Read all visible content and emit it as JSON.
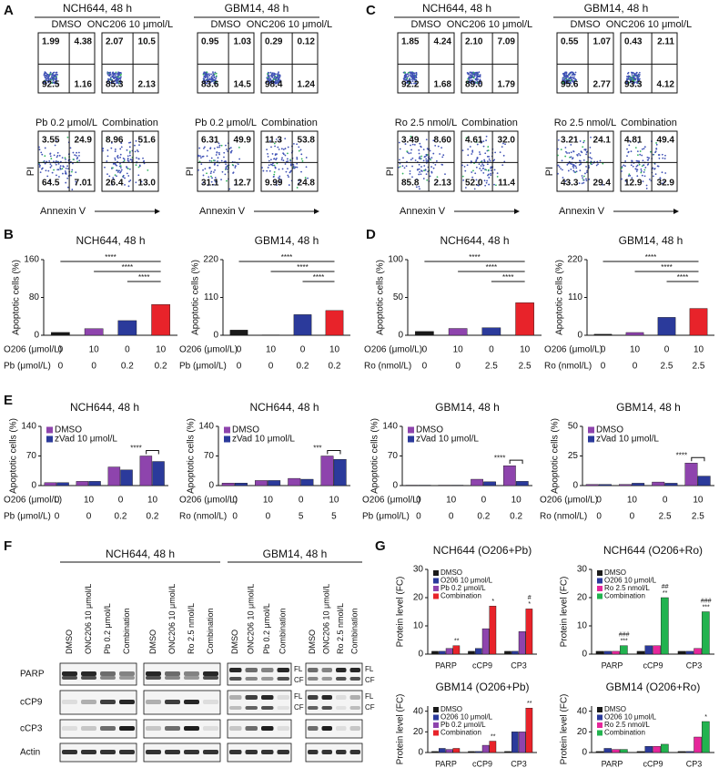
{
  "panel_labels": [
    "A",
    "B",
    "C",
    "D",
    "E",
    "F",
    "G"
  ],
  "flow_panels": [
    {
      "groups": [
        {
          "title": "NCH644, 48 h",
          "ylabel": "PI",
          "xlabel": "Annexin V",
          "plots": [
            {
              "name": "DMSO",
              "quadrants": [
                "1.99",
                "4.38",
                "92.5",
                "1.16"
              ]
            },
            {
              "name": "ONC206 10 μmol/L",
              "quadrants": [
                "2.07",
                "10.5",
                "85.3",
                "2.13"
              ]
            },
            {
              "name": "Pb 0.2 μmol/L",
              "quadrants": [
                "3.55",
                "24.9",
                "64.5",
                "7.01"
              ]
            },
            {
              "name": "Combination",
              "quadrants": [
                "8.96",
                "51.6",
                "26.4",
                "13.0"
              ]
            }
          ]
        },
        {
          "title": "GBM14, 48 h",
          "ylabel": "PI",
          "xlabel": "Annexin V",
          "plots": [
            {
              "name": "DMSO",
              "quadrants": [
                "0.95",
                "1.03",
                "83.6",
                "14.5"
              ]
            },
            {
              "name": "ONC206 10 μmol/L",
              "quadrants": [
                "0.29",
                "0.12",
                "98.4",
                "1.24"
              ]
            },
            {
              "name": "Pb 0.2 μmol/L",
              "quadrants": [
                "6.31",
                "49.9",
                "31.1",
                "12.7"
              ]
            },
            {
              "name": "Combination",
              "quadrants": [
                "11.3",
                "53.8",
                "9.99",
                "24.8"
              ]
            }
          ]
        }
      ]
    },
    {
      "groups": [
        {
          "title": "NCH644, 48 h",
          "ylabel": "PI",
          "xlabel": "Annexin V",
          "plots": [
            {
              "name": "DMSO",
              "quadrants": [
                "1.85",
                "4.24",
                "92.2",
                "1.68"
              ]
            },
            {
              "name": "ONC206 10 μmol/L",
              "quadrants": [
                "2.10",
                "7.09",
                "89.0",
                "1.79"
              ]
            },
            {
              "name": "Ro 2.5 nmol/L",
              "quadrants": [
                "3.49",
                "8.60",
                "85.8",
                "2.13"
              ]
            },
            {
              "name": "Combination",
              "quadrants": [
                "4.61",
                "32.0",
                "52.0",
                "11.4"
              ]
            }
          ]
        },
        {
          "title": "GBM14, 48 h",
          "ylabel": "PI",
          "xlabel": "Annexin V",
          "plots": [
            {
              "name": "DMSO",
              "quadrants": [
                "0.55",
                "1.07",
                "95.6",
                "2.77"
              ]
            },
            {
              "name": "ONC206 10 μmol/L",
              "quadrants": [
                "0.43",
                "2.11",
                "93.3",
                "4.12"
              ]
            },
            {
              "name": "Ro 2.5 nmol/L",
              "quadrants": [
                "3.21",
                "24.1",
                "43.3",
                "29.4"
              ]
            },
            {
              "name": "Combination",
              "quadrants": [
                "4.81",
                "49.4",
                "12.9",
                "32.9"
              ]
            }
          ]
        }
      ]
    }
  ],
  "chart_data": [
    {
      "type": "bar",
      "title": "NCH644, 48 h",
      "ylabel": "Apoptotic cells (%)",
      "ylim": [
        0,
        160
      ],
      "yticks": [
        0,
        80,
        160
      ],
      "series": [
        {
          "values": [
            6,
            14,
            31,
            65
          ],
          "colors": [
            "#1a1a1a",
            "#8e44ad",
            "#2b3a9b",
            "#e8232a"
          ]
        }
      ],
      "condition_rows": [
        {
          "label": "O206 (μmol/L)",
          "values": [
            "0",
            "10",
            "0",
            "10"
          ]
        },
        {
          "label": "Pb (μmol/L)",
          "values": [
            "0",
            "0",
            "0.2",
            "0.2"
          ]
        }
      ],
      "significance": [
        "****",
        "****",
        "****"
      ]
    },
    {
      "type": "bar",
      "title": "GBM14, 48 h",
      "ylabel": "Apoptotic cells (%)",
      "ylim": [
        0,
        220
      ],
      "yticks": [
        0,
        110,
        220
      ],
      "series": [
        {
          "values": [
            15,
            1,
            60,
            72
          ],
          "colors": [
            "#1a1a1a",
            "#8e44ad",
            "#2b3a9b",
            "#e8232a"
          ]
        }
      ],
      "condition_rows": [
        {
          "label": "O206 (μmol/L)",
          "values": [
            "0",
            "10",
            "0",
            "10"
          ]
        },
        {
          "label": "Pb (μmol/L)",
          "values": [
            "0",
            "0",
            "0.2",
            "0.2"
          ]
        }
      ],
      "significance": [
        "****",
        "****",
        "****"
      ]
    },
    {
      "type": "bar",
      "title": "NCH644, 48 h",
      "ylabel": "Apoptotic cells (%)",
      "ylim": [
        0,
        100
      ],
      "yticks": [
        0,
        50,
        100
      ],
      "series": [
        {
          "values": [
            5,
            9,
            10,
            43
          ],
          "colors": [
            "#1a1a1a",
            "#8e44ad",
            "#2b3a9b",
            "#e8232a"
          ]
        }
      ],
      "condition_rows": [
        {
          "label": "O206 (μmol/L)",
          "values": [
            "0",
            "10",
            "0",
            "10"
          ]
        },
        {
          "label": "Ro (nmol/L)",
          "values": [
            "0",
            "0",
            "2.5",
            "2.5"
          ]
        }
      ],
      "significance": [
        "****",
        "****",
        "****"
      ]
    },
    {
      "type": "bar",
      "title": "GBM14, 48 h",
      "ylabel": "Apoptotic cells (%)",
      "ylim": [
        0,
        220
      ],
      "yticks": [
        0,
        110,
        220
      ],
      "series": [
        {
          "values": [
            3,
            8,
            52,
            78
          ],
          "colors": [
            "#1a1a1a",
            "#8e44ad",
            "#2b3a9b",
            "#e8232a"
          ]
        }
      ],
      "condition_rows": [
        {
          "label": "O206 (μmol/L)",
          "values": [
            "0",
            "10",
            "0",
            "10"
          ]
        },
        {
          "label": "Ro (nmol/L)",
          "values": [
            "0",
            "0",
            "2.5",
            "2.5"
          ]
        }
      ],
      "significance": [
        "****",
        "****",
        "****"
      ]
    },
    {
      "type": "bar",
      "title": "NCH644, 48 h",
      "ylabel": "Apoptotic cells (%)",
      "ylim": [
        0,
        140
      ],
      "yticks": [
        0,
        70,
        140
      ],
      "series": [
        {
          "name": "DMSO",
          "color": "#8e44ad",
          "values": [
            7,
            10,
            44,
            70
          ]
        },
        {
          "name": "zVad 10 μmol/L",
          "color": "#2b3a9b",
          "values": [
            7,
            10,
            37,
            57
          ]
        }
      ],
      "condition_rows": [
        {
          "label": "O206 (μmol/L)",
          "values": [
            "0",
            "10",
            "0",
            "10"
          ]
        },
        {
          "label": "Pb (μmol/L)",
          "values": [
            "0",
            "0",
            "0.2",
            "0.2"
          ]
        }
      ],
      "significance": [
        "****"
      ]
    },
    {
      "type": "bar",
      "title": "NCH644, 48 h",
      "ylabel": "Apoptotic cells (%)",
      "ylim": [
        0,
        140
      ],
      "yticks": [
        0,
        70,
        140
      ],
      "series": [
        {
          "name": "DMSO",
          "color": "#8e44ad",
          "values": [
            6,
            12,
            17,
            70
          ]
        },
        {
          "name": "zVad 10 μmol/L",
          "color": "#2b3a9b",
          "values": [
            6,
            12,
            15,
            62
          ]
        }
      ],
      "condition_rows": [
        {
          "label": "O206 (μmol/L)",
          "values": [
            "0",
            "10",
            "0",
            "10"
          ]
        },
        {
          "label": "Ro (nmol/L)",
          "values": [
            "0",
            "0",
            "5",
            "5"
          ]
        }
      ],
      "significance": [
        "***"
      ]
    },
    {
      "type": "bar",
      "title": "GBM14, 48 h",
      "ylabel": "Apoptotic cells (%)",
      "ylim": [
        0,
        140
      ],
      "yticks": [
        0,
        70,
        140
      ],
      "series": [
        {
          "name": "DMSO",
          "color": "#8e44ad",
          "values": [
            1,
            1,
            15,
            47
          ]
        },
        {
          "name": "zVad 10 μmol/L",
          "color": "#2b3a9b",
          "values": [
            1,
            1,
            9,
            10
          ]
        }
      ],
      "condition_rows": [
        {
          "label": "O206 (μmol/L)",
          "values": [
            "0",
            "10",
            "0",
            "10"
          ]
        },
        {
          "label": "Pb (μmol/L)",
          "values": [
            "0",
            "0",
            "0.2",
            "0.2"
          ]
        }
      ],
      "significance": [
        "****"
      ]
    },
    {
      "type": "bar",
      "title": "GBM14, 48 h",
      "ylabel": "Apoptotic cells (%)",
      "ylim": [
        0,
        50
      ],
      "yticks": [
        0,
        25,
        50
      ],
      "series": [
        {
          "name": "DMSO",
          "color": "#8e44ad",
          "values": [
            1,
            1,
            3,
            19
          ]
        },
        {
          "name": "zVad 10 μmol/L",
          "color": "#2b3a9b",
          "values": [
            1,
            2,
            2,
            8
          ]
        }
      ],
      "condition_rows": [
        {
          "label": "O206 (μmol/L)",
          "values": [
            "0",
            "10",
            "0",
            "10"
          ]
        },
        {
          "label": "Ro (nmol/L)",
          "values": [
            "0",
            "0",
            "2.5",
            "2.5"
          ]
        }
      ],
      "significance": [
        "****"
      ]
    },
    {
      "type": "bar",
      "title": "NCH644 (O206+Pb)",
      "ylabel": "Protein level (FC)",
      "ylim": [
        0,
        30
      ],
      "yticks": [
        0,
        10,
        20,
        30
      ],
      "categories": [
        "PARP",
        "cCP9",
        "CP3"
      ],
      "series": [
        {
          "name": "DMSO",
          "color": "#1a1a1a",
          "values": [
            1,
            1,
            1
          ]
        },
        {
          "name": "O206 10 μmol/L",
          "color": "#2b3a9b",
          "values": [
            1,
            2,
            1
          ]
        },
        {
          "name": "Pb 0.2 μmol/L",
          "color": "#8e44ad",
          "values": [
            2,
            9,
            8
          ]
        },
        {
          "name": "Combination",
          "color": "#e8232a",
          "values": [
            3,
            17,
            16
          ],
          "labels": [
            [
              "**"
            ],
            [
              "*"
            ],
            [
              "*",
              "#"
            ]
          ]
        }
      ]
    },
    {
      "type": "bar",
      "title": "NCH644 (O206+Ro)",
      "ylabel": "Protein level (FC)",
      "ylim": [
        0,
        30
      ],
      "yticks": [
        0,
        10,
        20,
        30
      ],
      "categories": [
        "PARP",
        "cCP9",
        "CP3"
      ],
      "series": [
        {
          "name": "DMSO",
          "color": "#1a1a1a",
          "values": [
            1,
            1,
            1
          ]
        },
        {
          "name": "O206 10 μmol/L",
          "color": "#2b3a9b",
          "values": [
            1,
            3,
            1
          ]
        },
        {
          "name": "Ro 2.5 nmol/L",
          "color": "#e6279b",
          "values": [
            1,
            3,
            2
          ]
        },
        {
          "name": "Combination",
          "color": "#22b34f",
          "values": [
            3,
            20,
            15
          ],
          "labels": [
            [
              "***",
              "###"
            ],
            [
              "**",
              "##"
            ],
            [
              "***",
              "###"
            ]
          ]
        }
      ]
    },
    {
      "type": "bar",
      "title": "GBM14 (O206+Pb)",
      "ylabel": "Protein level (FC)",
      "ylim": [
        0,
        45
      ],
      "yticks": [
        0,
        20,
        40
      ],
      "categories": [
        "PARP",
        "cCP9",
        "CP3"
      ],
      "series": [
        {
          "name": "DMSO",
          "color": "#1a1a1a",
          "values": [
            1,
            1,
            1
          ]
        },
        {
          "name": "O206 10 μmol/L",
          "color": "#2b3a9b",
          "values": [
            4,
            1,
            20
          ]
        },
        {
          "name": "Pb 0.2 μmol/L",
          "color": "#8e44ad",
          "values": [
            3,
            7,
            20
          ]
        },
        {
          "name": "Combination",
          "color": "#e8232a",
          "values": [
            4,
            11,
            43
          ],
          "labels": [
            null,
            [
              "**"
            ],
            [
              "**"
            ]
          ]
        }
      ]
    },
    {
      "type": "bar",
      "title": "GBM14 (O206+Ro)",
      "ylabel": "Protein level (FC)",
      "ylim": [
        0,
        45
      ],
      "yticks": [
        0,
        20,
        40
      ],
      "categories": [
        "PARP",
        "cCP9",
        "CP3"
      ],
      "series": [
        {
          "name": "DMSO",
          "color": "#1a1a1a",
          "values": [
            1,
            1,
            1
          ]
        },
        {
          "name": "O206 10 μmol/L",
          "color": "#2b3a9b",
          "values": [
            4,
            6,
            1
          ]
        },
        {
          "name": "Ro 2.5 nmol/L",
          "color": "#e6279b",
          "values": [
            3,
            6,
            15
          ]
        },
        {
          "name": "Combination",
          "color": "#22b34f",
          "values": [
            3,
            8,
            30
          ],
          "labels": [
            null,
            null,
            [
              "*"
            ]
          ]
        }
      ]
    }
  ],
  "blot": {
    "rows": [
      "PARP",
      "cCP9",
      "cCP3",
      "Actin"
    ],
    "groups": [
      {
        "title": "NCH644, 48 h",
        "sets": [
          {
            "lanes": [
              "DMSO",
              "ONC206 10 μmol/L",
              "Pb 0.2 μmol/L",
              "Combination"
            ]
          },
          {
            "lanes": [
              "DMSO",
              "ONC206 10 μmol/L",
              "Ro 2.5 nmol/L",
              "Combination"
            ]
          }
        ]
      },
      {
        "title": "GBM14, 48 h",
        "side_labels": [
          "FL",
          "CF"
        ],
        "sets": [
          {
            "lanes": [
              "DMSO",
              "ONC206 10 μmol/L",
              "Pb 0.2 μmol/L",
              "Combination"
            ]
          },
          {
            "lanes": [
              "DMSO",
              "ONC206 10 μmol/L",
              "Ro 2.5 nmol/L",
              "Combination"
            ]
          }
        ]
      }
    ]
  }
}
